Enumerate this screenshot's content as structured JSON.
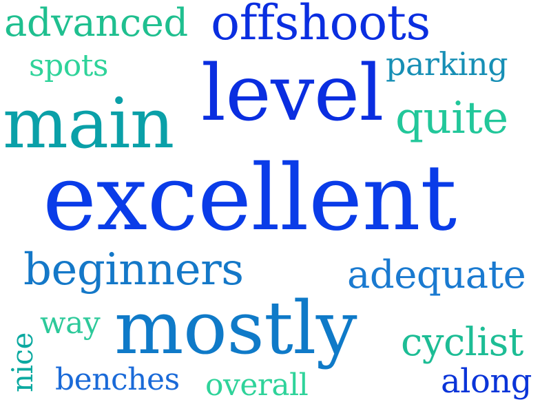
{
  "words": [
    {
      "id": "advanced",
      "text": "advanced",
      "color": "#1fbf8f"
    },
    {
      "id": "offshoots",
      "text": "offshoots",
      "color": "#0a2ee0"
    },
    {
      "id": "spots",
      "text": "spots",
      "color": "#2fd39a"
    },
    {
      "id": "parking",
      "text": "parking",
      "color": "#178fb5"
    },
    {
      "id": "level",
      "text": "level",
      "color": "#0a2ee0"
    },
    {
      "id": "main",
      "text": "main",
      "color": "#0aa0a8"
    },
    {
      "id": "quite",
      "text": "quite",
      "color": "#22c79a"
    },
    {
      "id": "excellent",
      "text": "excellent",
      "color": "#0a3ce8"
    },
    {
      "id": "beginners",
      "text": "beginners",
      "color": "#1478c8"
    },
    {
      "id": "adequate",
      "text": "adequate",
      "color": "#1a7ad0"
    },
    {
      "id": "way",
      "text": "way",
      "color": "#2dc99a"
    },
    {
      "id": "mostly",
      "text": "mostly",
      "color": "#0f7ac8"
    },
    {
      "id": "cyclist",
      "text": "cyclist",
      "color": "#1dbd95"
    },
    {
      "id": "benches",
      "text": "benches",
      "color": "#1a6ad8"
    },
    {
      "id": "overall",
      "text": "overall",
      "color": "#2fd39a"
    },
    {
      "id": "along",
      "text": "along",
      "color": "#0a34d8"
    },
    {
      "id": "nice",
      "text": "nice",
      "color": "#0ba9a0"
    }
  ]
}
